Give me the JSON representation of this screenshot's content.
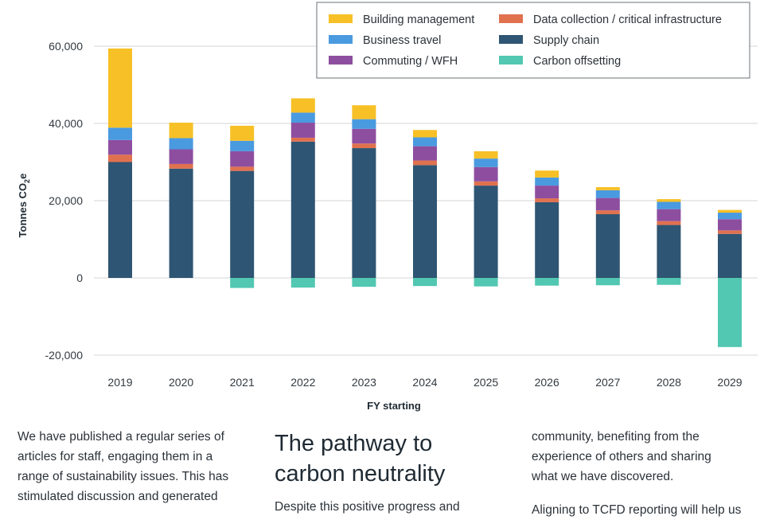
{
  "chart_data": {
    "type": "stacked-bar",
    "title": "",
    "xlabel": "FY starting",
    "ylabel": "Tonnes CO2e",
    "ylabel_main": "Tonnes CO",
    "ylabel_sub": "2",
    "ylabel_tail": "e",
    "ylim": [
      -20000,
      62000
    ],
    "yticks": [
      60000,
      40000,
      20000,
      0,
      -20000
    ],
    "ytick_labels": [
      "60,000",
      "40,000",
      "20,000",
      "0",
      "-20,000"
    ],
    "categories": [
      "2019",
      "2020",
      "2021",
      "2022",
      "2023",
      "2024",
      "2025",
      "2026",
      "2027",
      "2028",
      "2029"
    ],
    "series": [
      {
        "name": "Supply chain",
        "color": "#2e5573",
        "values": [
          30000,
          28300,
          27700,
          35300,
          33600,
          29200,
          23900,
          19600,
          16500,
          13700,
          11400
        ]
      },
      {
        "name": "Data collection / critical infrastructure",
        "color": "#e0714f",
        "values": [
          1900,
          1200,
          1100,
          1000,
          1200,
          1200,
          1100,
          1000,
          1000,
          1000,
          900
        ]
      },
      {
        "name": "Commuting / WFH",
        "color": "#8e4e9f",
        "values": [
          3800,
          3800,
          4000,
          3900,
          3800,
          3700,
          3700,
          3300,
          3200,
          3100,
          2900
        ]
      },
      {
        "name": "Business travel",
        "color": "#4a9ae0",
        "values": [
          3200,
          2900,
          2700,
          2600,
          2500,
          2300,
          2200,
          2100,
          2000,
          1900,
          1700
        ]
      },
      {
        "name": "Building management",
        "color": "#f6c026",
        "values": [
          20500,
          4000,
          3900,
          3700,
          3600,
          1900,
          1900,
          1800,
          800,
          700,
          700
        ]
      },
      {
        "name": "Carbon offsetting",
        "color": "#52c7b1",
        "values": [
          0,
          0,
          -2600,
          -2500,
          -2300,
          -2100,
          -2200,
          -2000,
          -1900,
          -1800,
          -17900
        ]
      }
    ],
    "legend": {
      "placement": "top-right",
      "items": [
        {
          "label": "Building management",
          "color": "#f6c026"
        },
        {
          "label": "Data collection / critical infrastructure",
          "color": "#e0714f"
        },
        {
          "label": "Business travel",
          "color": "#4a9ae0"
        },
        {
          "label": "Supply chain",
          "color": "#2e5573"
        },
        {
          "label": "Commuting / WFH",
          "color": "#8e4e9f"
        },
        {
          "label": "Carbon offsetting",
          "color": "#52c7b1"
        }
      ]
    }
  },
  "text_columns": {
    "col1": {
      "lines": [
        "We have published a regular series of",
        "articles for staff, engaging them in a",
        "range of sustainability issues. This has",
        "stimulated discussion and generated"
      ]
    },
    "col2": {
      "heading_lines": [
        "The pathway to",
        "carbon neutrality"
      ],
      "lines": [
        "Despite this positive progress and"
      ]
    },
    "col3": {
      "lines": [
        "community, benefiting from the",
        "experience of others and sharing",
        "what we have discovered."
      ],
      "next_lines": [
        "Aligning to TCFD reporting will help us"
      ]
    }
  }
}
